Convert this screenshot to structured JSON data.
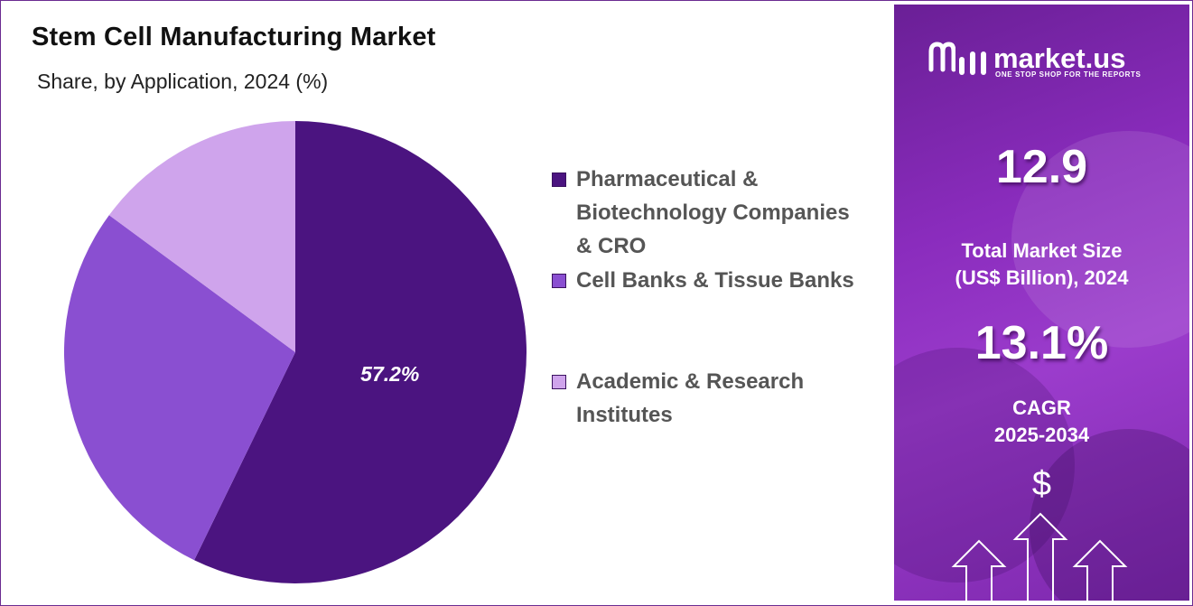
{
  "chart_data": {
    "type": "pie",
    "title": "Stem Cell Manufacturing Market",
    "subtitle": "Share, by Application, 2024 (%)",
    "series": [
      {
        "name": "Pharmaceutical & Biotechnology Companies & CRO",
        "value": 57.2,
        "color": "#4b1480",
        "label": "57.2%"
      },
      {
        "name": "Cell Banks & Tissue Banks",
        "value": 27.9,
        "color": "#8a4fd1"
      },
      {
        "name": "Academic & Research Institutes",
        "value": 14.9,
        "color": "#cfa4ec"
      }
    ],
    "legend_position": "right",
    "start": "top, clockwise"
  },
  "legend": {
    "item0_lines": [
      "Pharmaceutical &",
      "Biotechnology Companies",
      "& CRO"
    ],
    "item1_lines": [
      "Cell Banks & Tissue Banks"
    ],
    "item2_lines": [
      "Academic & Research",
      "Institutes"
    ]
  },
  "panel": {
    "brand": "market.us",
    "tagline": "ONE STOP SHOP FOR THE REPORTS",
    "market_size": "12.9",
    "market_size_caption_line1": "Total Market Size",
    "market_size_caption_line2": "(US$ Billion), 2024",
    "cagr": "13.1%",
    "cagr_caption_line1": "CAGR",
    "cagr_caption_line2": "2025-2034",
    "currency_symbol": "$",
    "logo_icon": "market-us-logo-icon",
    "growth_icon": "growth-arrows-icon"
  }
}
